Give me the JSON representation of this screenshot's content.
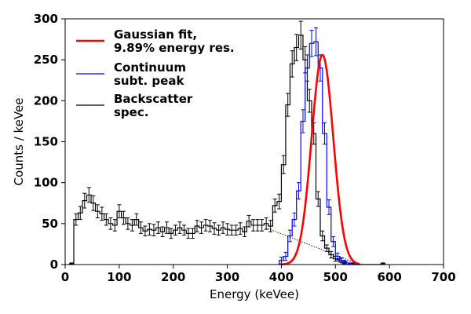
{
  "chart_data": {
    "type": "line",
    "xlabel": "Energy (keVee)",
    "ylabel": "Counts / keVee",
    "xlim": [
      0,
      700
    ],
    "ylim": [
      0,
      300
    ],
    "xticks": [
      0,
      100,
      200,
      300,
      400,
      500,
      600,
      700
    ],
    "yticks": [
      0,
      50,
      100,
      150,
      200,
      250,
      300
    ],
    "grid": false,
    "legend_position": "top-left",
    "bin_width": 8,
    "legend": [
      {
        "label_lines": [
          "Gaussian fit,",
          "9.89% energy res."
        ],
        "color": "#ff0000",
        "style": "thick-line"
      },
      {
        "label_lines": [
          "Continuum",
          "subt. peak"
        ],
        "color": "#0000ff",
        "style": "thin-line"
      },
      {
        "label_lines": [
          "Backscatter",
          "spec."
        ],
        "color": "#000000",
        "style": "thin-line"
      }
    ],
    "series": [
      {
        "name": "Backscatter spec.",
        "color": "#000000",
        "bin_centers": [
          12,
          20,
          28,
          36,
          44,
          52,
          60,
          68,
          76,
          84,
          92,
          100,
          108,
          116,
          124,
          132,
          140,
          148,
          156,
          164,
          172,
          180,
          188,
          196,
          204,
          212,
          220,
          228,
          236,
          244,
          252,
          260,
          268,
          276,
          284,
          292,
          300,
          308,
          316,
          324,
          332,
          340,
          348,
          356,
          364,
          372,
          380,
          388,
          396,
          404,
          412,
          420,
          428,
          436,
          444,
          452,
          460,
          468,
          476,
          484,
          492,
          500,
          508,
          516,
          524,
          532,
          540,
          548,
          556,
          564,
          572,
          580,
          588
        ],
        "values": [
          1,
          55,
          63,
          78,
          85,
          75,
          65,
          62,
          55,
          50,
          48,
          65,
          57,
          50,
          48,
          55,
          45,
          41,
          43,
          42,
          45,
          40,
          45,
          38,
          42,
          45,
          42,
          38,
          38,
          47,
          45,
          48,
          47,
          44,
          42,
          45,
          43,
          42,
          42,
          44,
          40,
          53,
          48,
          48,
          48,
          50,
          47,
          72,
          77,
          122,
          195,
          245,
          265,
          280,
          250,
          200,
          160,
          80,
          35,
          20,
          12,
          7,
          5,
          3,
          0,
          1,
          0,
          0,
          0,
          0,
          0,
          0,
          1
        ],
        "errors": [
          1,
          7,
          8,
          9,
          9,
          9,
          8,
          8,
          7,
          7,
          7,
          8,
          8,
          7,
          7,
          7,
          7,
          6,
          7,
          7,
          7,
          6,
          7,
          6,
          6,
          7,
          6,
          6,
          6,
          7,
          7,
          7,
          7,
          7,
          6,
          7,
          7,
          6,
          6,
          7,
          6,
          7,
          7,
          7,
          7,
          7,
          7,
          8,
          9,
          11,
          14,
          16,
          16,
          17,
          16,
          14,
          13,
          9,
          6,
          4,
          4,
          3,
          2,
          2,
          0,
          1,
          0,
          0,
          0,
          0,
          0,
          0,
          1
        ]
      },
      {
        "name": "Continuum subt. peak",
        "color": "#0000ff",
        "bin_centers": [
          400,
          408,
          416,
          424,
          432,
          440,
          448,
          456,
          464,
          472,
          480,
          488,
          496,
          504,
          512,
          520,
          528,
          536,
          544
        ],
        "values": [
          5,
          10,
          35,
          55,
          90,
          175,
          240,
          270,
          272,
          240,
          160,
          70,
          28,
          10,
          5,
          2,
          1,
          0,
          0
        ],
        "errors": [
          4,
          5,
          7,
          8,
          10,
          14,
          16,
          16,
          17,
          16,
          13,
          9,
          6,
          4,
          3,
          2,
          1,
          0,
          0
        ]
      },
      {
        "name": "Gaussian fit, 9.89% energy res.",
        "color": "#ff0000",
        "function": "gaussian",
        "amplitude": 256,
        "mean": 476,
        "sigma": 20,
        "x_range": [
          400,
          545
        ]
      },
      {
        "name": "continuum baseline",
        "color": "#000000",
        "style": "dotted",
        "x": [
          375,
          545
        ],
        "y": [
          44,
          0
        ]
      }
    ]
  }
}
